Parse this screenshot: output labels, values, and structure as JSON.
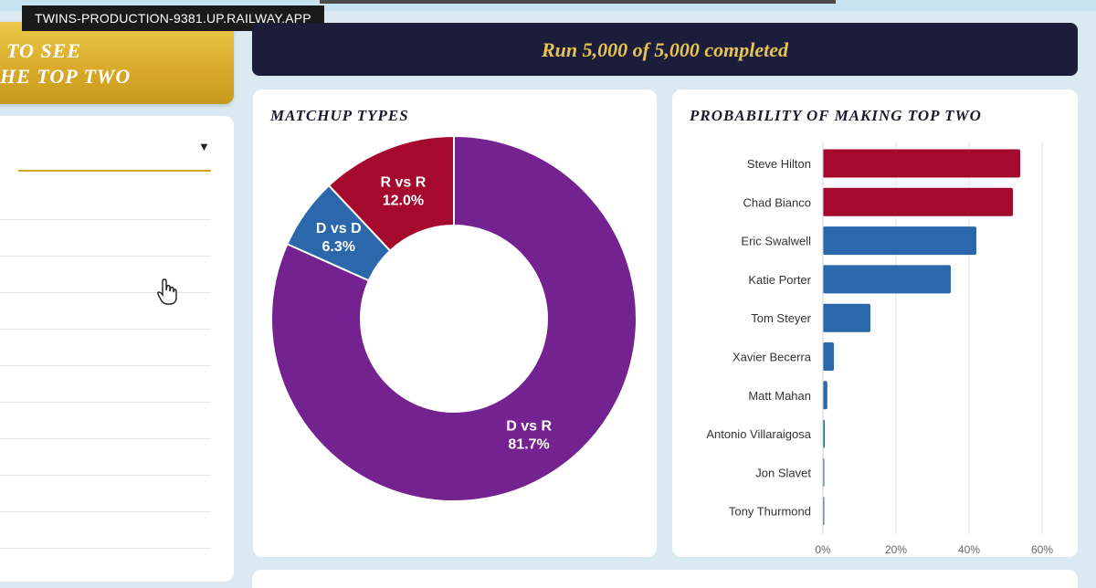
{
  "browser": {
    "url": "TWINS-PRODUCTION-9381.UP.RAILWAY.APP"
  },
  "left_banner": {
    "line1": "TO SEE",
    "line2": "HE TOP TWO"
  },
  "run_banner": {
    "text": "Run 5,000 of 5,000 completed"
  },
  "colors": {
    "dem": "#2a67ab",
    "rep": "#a5092e",
    "mixed": "#74228f",
    "gold": "#d8a928",
    "navy": "#1c1d3a"
  },
  "matchup_card": {
    "title": "MATCHUP TYPES",
    "chart_data": {
      "type": "pie",
      "categories": [
        "D vs R",
        "D vs D",
        "R vs R"
      ],
      "values": [
        81.7,
        6.3,
        12.0
      ],
      "labels": [
        "81.7%",
        "6.3%",
        "12.0%"
      ],
      "colors": [
        "#74228f",
        "#2a67ab",
        "#a5092e"
      ]
    }
  },
  "probability_card": {
    "title": "PROBABILITY OF MAKING TOP TWO",
    "chart_data": {
      "type": "bar",
      "orientation": "horizontal",
      "categories": [
        "Steve Hilton",
        "Chad Bianco",
        "Eric Swalwell",
        "Katie Porter",
        "Tom Steyer",
        "Xavier Becerra",
        "Matt Mahan",
        "Antonio Villaraigosa",
        "Jon Slavet",
        "Tony Thurmond"
      ],
      "values": [
        54,
        52,
        42,
        35,
        13,
        3,
        1.2,
        0.5,
        0.1,
        0.1
      ],
      "party": [
        "R",
        "R",
        "D",
        "D",
        "D",
        "D",
        "D",
        "D",
        "D",
        "D"
      ],
      "xlim": [
        0,
        60
      ],
      "xticks": [
        "0%",
        "20%",
        "40%",
        "60%"
      ],
      "grid": true
    }
  }
}
